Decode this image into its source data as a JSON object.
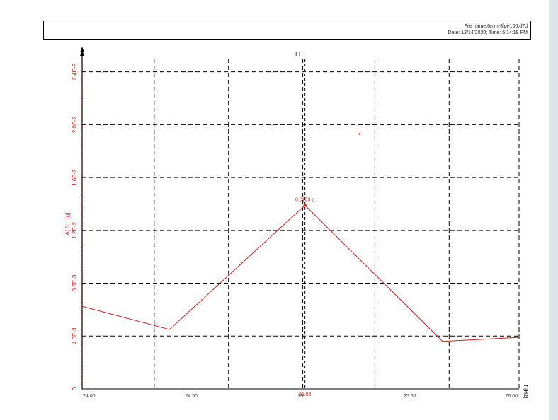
{
  "header": {
    "file_name": "File name:6mm-3fpi-100.d7d",
    "date_time": "Date: 12/14/2020; Time: 6:14:19 PM"
  },
  "colors": {
    "series": "#cc1e1e",
    "grid": "#000000"
  },
  "chart_data": {
    "type": "line",
    "title": "FFT",
    "xlabel": "f [Hz]",
    "ylabel": "A[ 0; : [g]",
    "xlim": [
      24.0,
      26.0
    ],
    "ylim": [
      0,
      0.025
    ],
    "x_tick_labels": [
      "24.00",
      "24.50",
      "25",
      "25.50",
      "26.00"
    ],
    "x_tick_values": [
      24.0,
      24.5,
      25.0,
      25.5,
      26.0
    ],
    "y_tick_labels": [
      "0",
      "4.0E-3",
      "8.0E-3",
      "1.2E-2",
      "1.6E-2",
      "2.0E-2",
      "2.4E-2"
    ],
    "y_tick_values": [
      0,
      0.004,
      0.008,
      0.012,
      0.016,
      0.02,
      0.024
    ],
    "x_grid": [
      24.33,
      24.67,
      25.01,
      25.34,
      25.68,
      26.0
    ],
    "y_grid": [
      0.004,
      0.008,
      0.012,
      0.016,
      0.02,
      0.024
    ],
    "cursor": {
      "x": 25.02,
      "label": "25.02"
    },
    "peak": {
      "x": 25.02,
      "y": 0.0139,
      "label": "0.0139 g"
    },
    "outlier_point": {
      "x": 25.27,
      "y": 0.0193
    },
    "series": [
      {
        "name": "FFT",
        "x": [
          24.0,
          24.4,
          25.02,
          25.65,
          26.0
        ],
        "y": [
          0.00625,
          0.0045,
          0.0139,
          0.0036,
          0.0039
        ]
      }
    ]
  }
}
